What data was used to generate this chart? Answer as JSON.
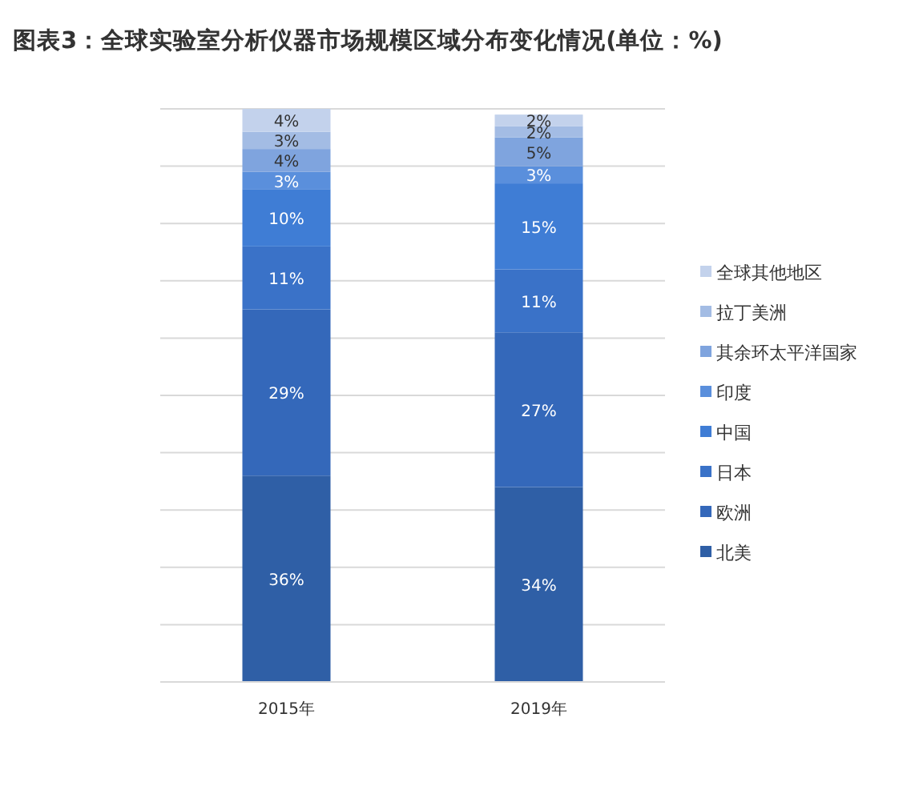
{
  "chart_data": {
    "type": "bar",
    "stacked": true,
    "title": "图表3：全球实验室分析仪器市场规模区域分布变化情况(单位：%)",
    "categories": [
      "2015年",
      "2019年"
    ],
    "series": [
      {
        "name": "北美",
        "color": "#2f5fa6",
        "values": [
          36,
          34
        ],
        "value_labels": [
          "36%",
          "34%"
        ]
      },
      {
        "name": "欧洲",
        "color": "#3468ba",
        "values": [
          29,
          27
        ],
        "value_labels": [
          "29%",
          "27%"
        ]
      },
      {
        "name": "日本",
        "color": "#3a72c8",
        "values": [
          11,
          11
        ],
        "value_labels": [
          "11%",
          "11%"
        ]
      },
      {
        "name": "中国",
        "color": "#3f7dd5",
        "values": [
          10,
          15
        ],
        "value_labels": [
          "10%",
          "15%"
        ]
      },
      {
        "name": "印度",
        "color": "#5a8fdc",
        "values": [
          3,
          3
        ],
        "value_labels": [
          "3%",
          "3%"
        ]
      },
      {
        "name": "其余环太平洋国家",
        "color": "#7fa4de",
        "values": [
          4,
          5
        ],
        "value_labels": [
          "4%",
          "5%"
        ]
      },
      {
        "name": "拉丁美洲",
        "color": "#a3bce4",
        "values": [
          3,
          2
        ],
        "value_labels": [
          "3%",
          "2%"
        ]
      },
      {
        "name": "全球其他地区",
        "color": "#c3d2ec",
        "values": [
          4,
          2
        ],
        "value_labels": [
          "4%",
          "2%"
        ]
      }
    ],
    "ylim": [
      0,
      100
    ],
    "yticks": [
      {
        "value": 0,
        "label": null
      },
      {
        "value": 10,
        "label": null
      },
      {
        "value": 20,
        "label": null
      },
      {
        "value": 30,
        "label": null
      },
      {
        "value": 40,
        "label": null
      },
      {
        "value": 50,
        "label": null
      },
      {
        "value": 60,
        "label": null
      },
      {
        "value": 70,
        "label": null
      },
      {
        "value": 80,
        "label": null
      },
      {
        "value": 90,
        "label": null
      },
      {
        "value": 100,
        "label": null
      }
    ],
    "tick_labels": "x",
    "grid": "y",
    "legend": "right"
  }
}
